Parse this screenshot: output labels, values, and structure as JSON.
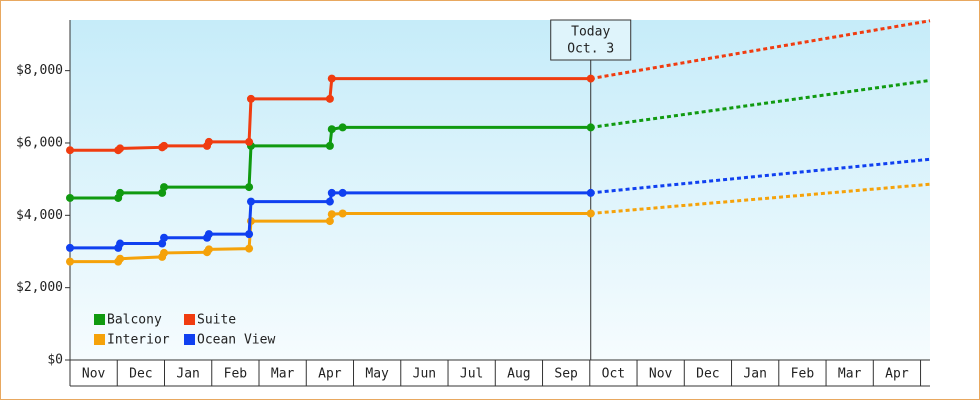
{
  "chart_data": {
    "type": "step-line",
    "categories": [
      "Nov",
      "Dec",
      "Jan",
      "Feb",
      "Mar",
      "Apr",
      "May",
      "Jun",
      "Jul",
      "Aug",
      "Sep",
      "Oct",
      "Nov",
      "Dec",
      "Jan",
      "Feb",
      "Mar",
      "Apr"
    ],
    "xlim": [
      0,
      18.2
    ],
    "ylim": [
      0,
      9400
    ],
    "yticks": [
      {
        "value": 0,
        "label": "$0"
      },
      {
        "value": 2000,
        "label": "$2,000"
      },
      {
        "value": 4000,
        "label": "$4,000"
      },
      {
        "value": 6000,
        "label": "$6,000"
      },
      {
        "value": 8000,
        "label": "$8,000"
      }
    ],
    "annotation": {
      "lines": [
        "Today",
        "Oct. 3"
      ],
      "x": 11.02
    },
    "legend": "bottom-left",
    "series": [
      {
        "name": "Balcony",
        "color": "#109a10",
        "x": [
          0,
          1.02,
          1.06,
          1.95,
          1.99,
          3.79,
          3.83,
          5.5,
          5.54,
          5.77,
          11.02
        ],
        "values": [
          4480,
          4480,
          4620,
          4620,
          4780,
          4780,
          5920,
          5920,
          6380,
          6430,
          6430
        ],
        "projection": {
          "x": [
            11.02,
            18.2
          ],
          "values": [
            6430,
            7730
          ]
        }
      },
      {
        "name": "Suite",
        "color": "#f03c10",
        "x": [
          0,
          1.02,
          1.06,
          1.95,
          1.99,
          2.9,
          2.94,
          3.79,
          3.83,
          5.5,
          5.54,
          11.02
        ],
        "values": [
          5800,
          5800,
          5850,
          5880,
          5920,
          5920,
          6030,
          6030,
          7220,
          7220,
          7780,
          7780
        ],
        "projection": {
          "x": [
            11.02,
            18.2
          ],
          "values": [
            7780,
            9380
          ]
        }
      },
      {
        "name": "Interior",
        "color": "#f5a20a",
        "x": [
          0,
          1.02,
          1.06,
          1.95,
          1.99,
          2.9,
          2.94,
          3.79,
          3.83,
          5.5,
          5.54,
          5.77,
          11.02
        ],
        "values": [
          2720,
          2720,
          2800,
          2850,
          2960,
          2980,
          3060,
          3080,
          3840,
          3840,
          4030,
          4050,
          4050
        ],
        "projection": {
          "x": [
            11.02,
            18.2
          ],
          "values": [
            4050,
            4860
          ]
        }
      },
      {
        "name": "Ocean View",
        "color": "#1040f0",
        "x": [
          0,
          1.02,
          1.06,
          1.95,
          1.99,
          2.9,
          2.94,
          3.79,
          3.83,
          5.5,
          5.54,
          5.77,
          11.02
        ],
        "values": [
          3100,
          3100,
          3220,
          3220,
          3380,
          3380,
          3480,
          3480,
          4380,
          4380,
          4620,
          4620,
          4620
        ],
        "projection": {
          "x": [
            11.02,
            18.2
          ],
          "values": [
            4620,
            5550
          ]
        }
      }
    ]
  }
}
